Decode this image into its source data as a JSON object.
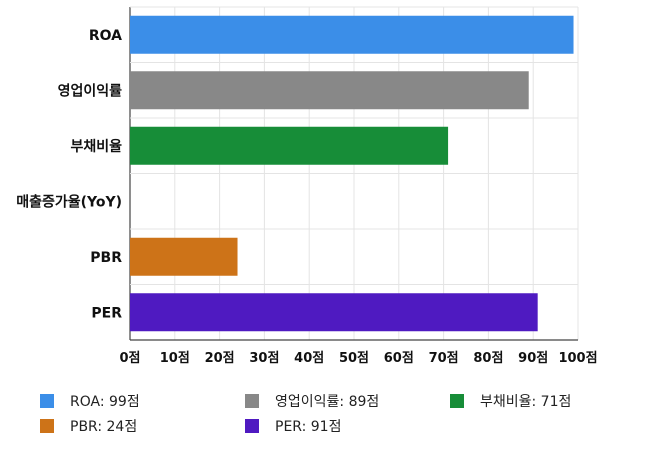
{
  "chart_data": {
    "type": "bar",
    "orientation": "horizontal",
    "categories": [
      "ROA",
      "영업이익률",
      "부채비율",
      "매출증가율(YoY)",
      "PBR",
      "PER"
    ],
    "values": [
      99,
      89,
      71,
      null,
      24,
      91
    ],
    "colors": [
      "#3b8ee8",
      "#888888",
      "#178d38",
      "#9aa0a6",
      "#cd7318",
      "#4f1ac1"
    ],
    "xlim": [
      0,
      100
    ],
    "xticks": [
      0,
      10,
      20,
      30,
      40,
      50,
      60,
      70,
      80,
      90,
      100
    ],
    "xtick_labels": [
      "0점",
      "10점",
      "20점",
      "30점",
      "40점",
      "50점",
      "60점",
      "70점",
      "80점",
      "90점",
      "100점"
    ],
    "grid": true,
    "legend_position": "bottom",
    "legend": [
      {
        "label": "ROA: 99점",
        "color": "#3b8ee8"
      },
      {
        "label": "영업이익률: 89점",
        "color": "#888888"
      },
      {
        "label": "부채비율: 71점",
        "color": "#178d38"
      },
      {
        "label": "PBR: 24점",
        "color": "#cd7318"
      },
      {
        "label": "PER: 91점",
        "color": "#4f1ac1"
      }
    ]
  }
}
